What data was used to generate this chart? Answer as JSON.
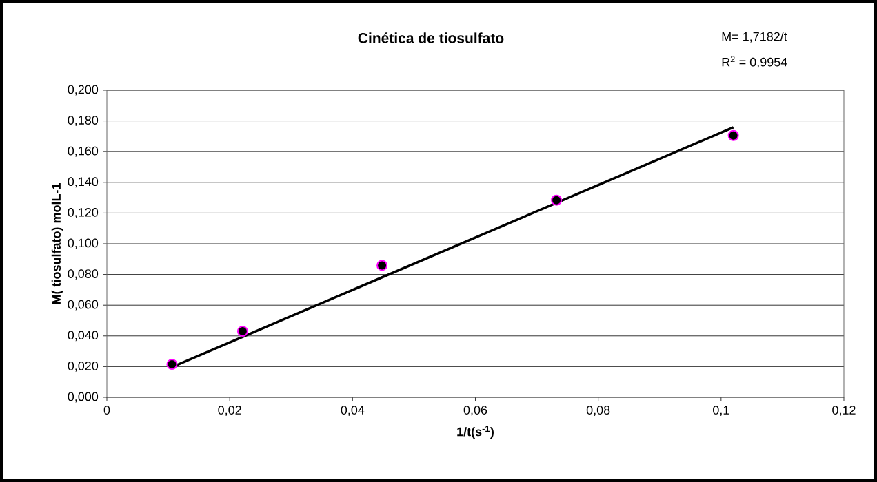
{
  "chart_data": {
    "type": "scatter",
    "title": "Cinética de tiosulfato",
    "xlabel": "1/t(s$^{-1}$)",
    "ylabel": "M( tiosulfato) molL-1",
    "annotations": [
      "M= 1,7182/t",
      "R$^{2}$ = 0,9954"
    ],
    "series": [
      {
        "color": "#000000",
        "marker": "circle",
        "x": [
          0.0106,
          0.0221,
          0.0448,
          0.0732,
          0.102
        ],
        "values": [
          0.0215,
          0.043,
          0.0859,
          0.1284,
          0.1705
        ]
      },
      {
        "type": "line",
        "color": "#000000",
        "marker": "none",
        "x": [
          0.0106,
          0.102
        ],
        "values": [
          0.0197,
          0.1758
        ]
      }
    ],
    "grid": "y",
    "xlim": [
      0,
      0.12
    ],
    "ylim": [
      0,
      0.2
    ],
    "xticks": [
      0,
      {
        "value": 0.02,
        "label": "0,02"
      },
      {
        "value": 0.04,
        "label": "0,04"
      },
      {
        "value": 0.06,
        "label": "0,06"
      },
      {
        "value": 0.08,
        "label": "0,08"
      },
      {
        "value": 0.1,
        "label": "0,1"
      },
      {
        "value": 0.12,
        "label": "0,12"
      }
    ],
    "yticks": [
      {
        "value": 0,
        "label": "0,000"
      },
      {
        "value": 0.02,
        "label": "0,020"
      },
      {
        "value": 0.04,
        "label": "0,040"
      },
      {
        "value": 0.06,
        "label": "0,060"
      },
      {
        "value": 0.08,
        "label": "0,080"
      },
      {
        "value": 0.1,
        "label": "0,100"
      },
      {
        "value": 0.12,
        "label": "0,120"
      },
      {
        "value": 0.14,
        "label": "0,140"
      },
      {
        "value": 0.16,
        "label": "0,160"
      },
      {
        "value": 0.18,
        "label": "0,180"
      },
      {
        "value": 0.2,
        "label": "0,200"
      }
    ]
  }
}
